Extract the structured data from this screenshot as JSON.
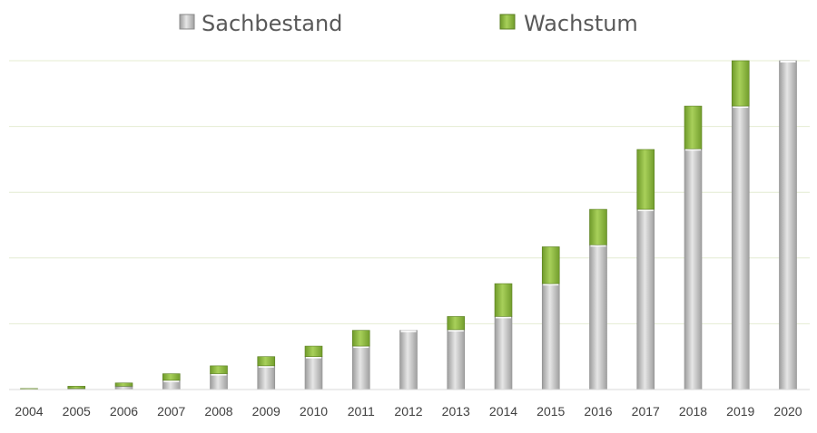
{
  "chart_data": {
    "type": "bar",
    "stacked": true,
    "categories": [
      "2004",
      "2005",
      "2006",
      "2007",
      "2008",
      "2009",
      "2010",
      "2011",
      "2012",
      "2013",
      "2014",
      "2015",
      "2016",
      "2017",
      "2018",
      "2019",
      "2020"
    ],
    "series": [
      {
        "name": "Sachbestand",
        "color": "#c8c8c8",
        "values": [
          0.0,
          0.03,
          0.1,
          0.28,
          0.48,
          0.72,
          1.0,
          1.32,
          1.8,
          1.82,
          2.22,
          3.22,
          4.4,
          5.48,
          7.32,
          8.62,
          10.0
        ]
      },
      {
        "name": "Wachstum",
        "color": "#8cb83a",
        "values": [
          0.03,
          0.07,
          0.1,
          0.2,
          0.24,
          0.28,
          0.32,
          0.48,
          0.0,
          0.4,
          1.0,
          1.12,
          1.08,
          1.82,
          1.3,
          1.38,
          0.0
        ]
      }
    ],
    "ylim": [
      0,
      10
    ],
    "grid": true,
    "y_tick_labels_visible": false,
    "legend_position": "top"
  }
}
